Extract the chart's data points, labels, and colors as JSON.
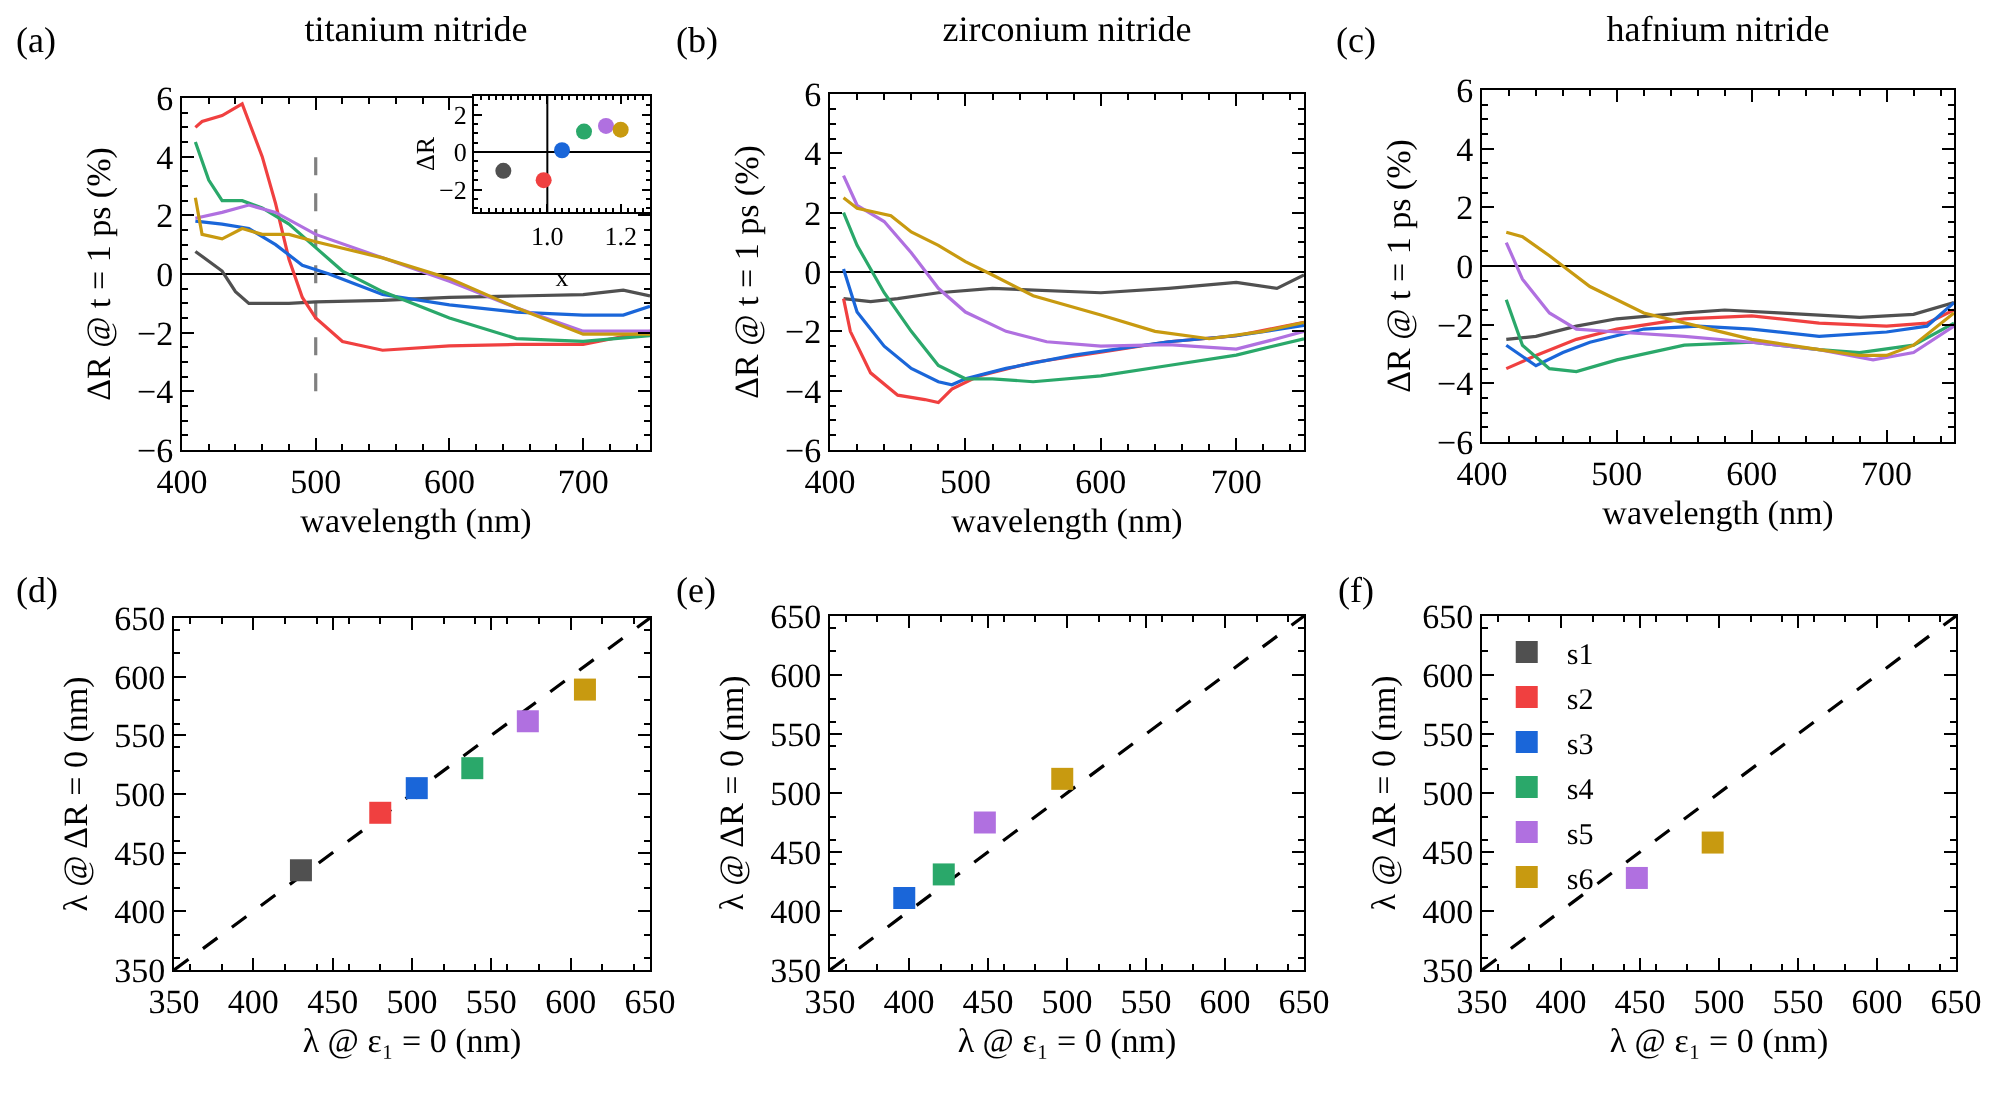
{
  "chart_data": [
    {
      "type": "line",
      "title": "titanium nitride",
      "annotations": [
        "(a)"
      ],
      "xlabel": "wavelength (nm)",
      "ylabel": "ΔR @ t = 1 ps (%)",
      "xlim": [
        400,
        750
      ],
      "xticks": [
        400,
        500,
        600,
        700
      ],
      "ylim": [
        -6,
        6
      ],
      "yticks": [
        -6,
        -4,
        -2,
        0,
        2,
        4,
        6
      ],
      "grid": false,
      "legend": false,
      "ref_lines": [
        {
          "axis": "y",
          "value": 0,
          "color": "#000000",
          "line_style": "solid"
        }
      ],
      "series": [
        {
          "color": "#808080",
          "line_style": "dashed",
          "x": [
            500,
            500
          ],
          "values": [
            -4,
            4
          ]
        },
        {
          "color": "#505050",
          "x": [
            410,
            430,
            440,
            450,
            480,
            500,
            550,
            600,
            650,
            700,
            730,
            750
          ],
          "values": [
            0.77,
            0.1,
            -0.6,
            -1.0,
            -1.0,
            -0.95,
            -0.9,
            -0.8,
            -0.75,
            -0.7,
            -0.55,
            -0.75
          ]
        },
        {
          "color": "#f04040",
          "x": [
            410,
            415,
            430,
            445,
            450,
            460,
            470,
            480,
            490,
            500,
            520,
            550,
            600,
            650,
            700,
            750
          ],
          "values": [
            5.0,
            5.2,
            5.4,
            5.8,
            5.2,
            4.0,
            2.4,
            0.5,
            -0.8,
            -1.5,
            -2.3,
            -2.6,
            -2.45,
            -2.4,
            -2.4,
            -1.95
          ]
        },
        {
          "color": "#1a66d9",
          "x": [
            410,
            430,
            450,
            470,
            490,
            510,
            530,
            550,
            600,
            650,
            700,
            730,
            750
          ],
          "values": [
            1.8,
            1.7,
            1.55,
            1.0,
            0.3,
            0,
            -0.35,
            -0.7,
            -1.05,
            -1.3,
            -1.4,
            -1.4,
            -1.1
          ]
        },
        {
          "color": "#2aa86a",
          "x": [
            410,
            420,
            430,
            445,
            460,
            480,
            500,
            520,
            550,
            600,
            650,
            700,
            750
          ],
          "values": [
            4.5,
            3.2,
            2.5,
            2.5,
            2.25,
            1.7,
            0.9,
            0.1,
            -0.6,
            -1.5,
            -2.2,
            -2.3,
            -2.1
          ]
        },
        {
          "color": "#b070e0",
          "x": [
            410,
            430,
            450,
            470,
            500,
            550,
            600,
            650,
            700,
            730,
            750
          ],
          "values": [
            1.9,
            2.1,
            2.35,
            2.1,
            1.35,
            0.55,
            -0.25,
            -1.15,
            -1.95,
            -1.95,
            -1.95
          ]
        },
        {
          "color": "#c89a10",
          "x": [
            410,
            415,
            430,
            445,
            460,
            480,
            500,
            550,
            600,
            650,
            700,
            750
          ],
          "values": [
            2.6,
            1.35,
            1.2,
            1.55,
            1.35,
            1.35,
            1.1,
            0.55,
            -0.15,
            -1.15,
            -2.05,
            -2.05
          ]
        }
      ]
    },
    {
      "type": "scatter",
      "marker": "circle",
      "xlabel": "x",
      "ylabel": "ΔR",
      "xlim": [
        0.8,
        1.28
      ],
      "xticks": [
        {
          "value": 1,
          "label": "1.0"
        },
        {
          "value": 1.2,
          "label": "1.2"
        }
      ],
      "ylim": [
        -3.2,
        3
      ],
      "yticks": [
        -2,
        0,
        2
      ],
      "grid": false,
      "legend": false,
      "ref_lines": [
        {
          "axis": "y",
          "value": 0,
          "color": "#000000",
          "line_style": "solid"
        },
        {
          "axis": "x",
          "value": 1,
          "color": "#000000",
          "line_style": "solid"
        }
      ],
      "x": [
        0.88,
        0.99,
        1.04,
        1.1,
        1.16,
        1.2
      ],
      "values": [
        -1.0,
        -1.5,
        0.1,
        1.1,
        1.4,
        1.2
      ],
      "colors": [
        "#505050",
        "#f04040",
        "#1a66d9",
        "#2aa86a",
        "#b070e0",
        "#c89a10"
      ]
    },
    {
      "type": "line",
      "title": "zirconium nitride",
      "annotations": [
        "(b)"
      ],
      "xlabel": "wavelength (nm)",
      "ylabel": "ΔR @ t = 1 ps (%)",
      "xlim": [
        400,
        750
      ],
      "xticks": [
        400,
        500,
        600,
        700
      ],
      "ylim": [
        -6,
        6
      ],
      "yticks": [
        -6,
        -4,
        -2,
        0,
        2,
        4,
        6
      ],
      "grid": false,
      "legend": false,
      "ref_lines": [
        {
          "axis": "y",
          "value": 0,
          "color": "#000000",
          "line_style": "solid"
        }
      ],
      "series": [
        {
          "color": "#505050",
          "x": [
            410,
            430,
            450,
            480,
            520,
            600,
            650,
            700,
            730,
            750
          ],
          "values": [
            -0.9,
            -1.0,
            -0.9,
            -0.7,
            -0.55,
            -0.7,
            -0.55,
            -0.35,
            -0.55,
            -0.1
          ]
        },
        {
          "color": "#f04040",
          "x": [
            410,
            415,
            430,
            450,
            470,
            480,
            490,
            510,
            550,
            600,
            650,
            700,
            750
          ],
          "values": [
            -0.9,
            -2.0,
            -3.4,
            -4.15,
            -4.3,
            -4.4,
            -3.95,
            -3.5,
            -3.05,
            -2.7,
            -2.35,
            -2.15,
            -1.7
          ]
        },
        {
          "color": "#1a66d9",
          "x": [
            410,
            420,
            440,
            460,
            480,
            490,
            500,
            530,
            580,
            650,
            700,
            750
          ],
          "values": [
            0.1,
            -1.35,
            -2.5,
            -3.25,
            -3.7,
            -3.8,
            -3.6,
            -3.25,
            -2.8,
            -2.35,
            -2.15,
            -1.8
          ]
        },
        {
          "color": "#2aa86a",
          "x": [
            410,
            420,
            440,
            460,
            480,
            500,
            520,
            550,
            600,
            650,
            700,
            750
          ],
          "values": [
            2.0,
            0.9,
            -0.7,
            -2.0,
            -3.15,
            -3.6,
            -3.6,
            -3.7,
            -3.5,
            -3.15,
            -2.8,
            -2.25
          ]
        },
        {
          "color": "#b070e0",
          "x": [
            410,
            420,
            440,
            460,
            480,
            500,
            530,
            560,
            600,
            650,
            700,
            730,
            750
          ],
          "values": [
            3.25,
            2.25,
            1.7,
            0.65,
            -0.55,
            -1.35,
            -2.0,
            -2.35,
            -2.5,
            -2.45,
            -2.6,
            -2.25,
            -2.0
          ]
        },
        {
          "color": "#c89a10",
          "x": [
            410,
            420,
            445,
            460,
            480,
            500,
            520,
            550,
            600,
            640,
            680,
            720,
            750
          ],
          "values": [
            2.5,
            2.15,
            1.9,
            1.35,
            0.9,
            0.35,
            -0.1,
            -0.8,
            -1.45,
            -2.0,
            -2.25,
            -2.0,
            -1.7
          ]
        }
      ]
    },
    {
      "type": "line",
      "title": "hafnium nitride",
      "annotations": [
        "(c)"
      ],
      "xlabel": "wavelength (nm)",
      "ylabel": "ΔR @ t = 1 ps (%)",
      "xlim": [
        400,
        750
      ],
      "xticks": [
        400,
        500,
        600,
        700
      ],
      "ylim": [
        -6,
        6
      ],
      "yticks": [
        -6,
        -4,
        -2,
        0,
        2,
        4,
        6
      ],
      "grid": false,
      "legend": false,
      "ref_lines": [
        {
          "axis": "y",
          "value": 0,
          "color": "#000000",
          "line_style": "solid"
        }
      ],
      "series": [
        {
          "color": "#505050",
          "x": [
            418,
            440,
            470,
            500,
            550,
            580,
            620,
            680,
            720,
            750
          ],
          "values": [
            -2.5,
            -2.4,
            -2.05,
            -1.8,
            -1.6,
            -1.5,
            -1.6,
            -1.75,
            -1.65,
            -1.25
          ]
        },
        {
          "color": "#f04040",
          "x": [
            418,
            440,
            470,
            500,
            550,
            600,
            650,
            700,
            730,
            750
          ],
          "values": [
            -3.5,
            -3.05,
            -2.5,
            -2.15,
            -1.8,
            -1.7,
            -1.95,
            -2.05,
            -1.95,
            -1.5
          ]
        },
        {
          "color": "#1a66d9",
          "x": [
            418,
            440,
            460,
            480,
            520,
            560,
            600,
            650,
            700,
            730,
            750
          ],
          "values": [
            -2.7,
            -3.4,
            -2.95,
            -2.6,
            -2.15,
            -2.05,
            -2.15,
            -2.4,
            -2.25,
            -2.05,
            -1.25
          ]
        },
        {
          "color": "#2aa86a",
          "x": [
            418,
            430,
            450,
            470,
            500,
            550,
            600,
            650,
            680,
            720,
            750
          ],
          "values": [
            -1.15,
            -2.7,
            -3.5,
            -3.6,
            -3.2,
            -2.7,
            -2.6,
            -2.85,
            -2.95,
            -2.7,
            -1.95
          ]
        },
        {
          "color": "#b070e0",
          "x": [
            418,
            430,
            450,
            470,
            500,
            550,
            600,
            650,
            690,
            720,
            750
          ],
          "values": [
            0.8,
            -0.45,
            -1.6,
            -2.15,
            -2.25,
            -2.4,
            -2.6,
            -2.85,
            -3.2,
            -2.95,
            -2.05
          ]
        },
        {
          "color": "#c89a10",
          "x": [
            418,
            430,
            450,
            480,
            520,
            560,
            600,
            650,
            680,
            700,
            720,
            750
          ],
          "values": [
            1.15,
            1.0,
            0.35,
            -0.7,
            -1.6,
            -2.05,
            -2.5,
            -2.85,
            -3.05,
            -3.05,
            -2.7,
            -1.6
          ]
        }
      ]
    },
    {
      "type": "scatter",
      "marker": "square",
      "annotations": [
        "(d)"
      ],
      "xlabel": "λ @ ε₁ = 0 (nm)",
      "ylabel": "λ @ ΔR = 0 (nm)",
      "xlim": [
        350,
        650
      ],
      "xticks": [
        350,
        400,
        450,
        500,
        550,
        600,
        650
      ],
      "ylim": [
        350,
        650
      ],
      "yticks": [
        350,
        400,
        450,
        500,
        550,
        600,
        650
      ],
      "grid": false,
      "legend": false,
      "series": [
        {
          "type": "line",
          "marker": "none",
          "color": "#000000",
          "line_style": "dashed",
          "x": [
            350,
            650
          ],
          "values": [
            350,
            650
          ]
        },
        {
          "color": "#505050",
          "x": [
            430
          ],
          "values": [
            435
          ]
        },
        {
          "color": "#f04040",
          "x": [
            480
          ],
          "values": [
            484
          ]
        },
        {
          "color": "#1a66d9",
          "x": [
            503
          ],
          "values": [
            505
          ]
        },
        {
          "color": "#2aa86a",
          "x": [
            538
          ],
          "values": [
            522
          ]
        },
        {
          "color": "#b070e0",
          "x": [
            573
          ],
          "values": [
            562
          ]
        },
        {
          "color": "#c89a10",
          "x": [
            609
          ],
          "values": [
            589
          ]
        }
      ]
    },
    {
      "type": "scatter",
      "marker": "square",
      "annotations": [
        "(e)"
      ],
      "xlabel": "λ @ ε₁ = 0 (nm)",
      "ylabel": "λ @ ΔR = 0 (nm)",
      "xlim": [
        350,
        650
      ],
      "xticks": [
        350,
        400,
        450,
        500,
        550,
        600,
        650
      ],
      "ylim": [
        350,
        650
      ],
      "yticks": [
        350,
        400,
        450,
        500,
        550,
        600,
        650
      ],
      "grid": false,
      "legend": false,
      "series": [
        {
          "type": "line",
          "marker": "none",
          "color": "#000000",
          "line_style": "dashed",
          "x": [
            350,
            650
          ],
          "values": [
            350,
            650
          ]
        },
        {
          "color": "#1a66d9",
          "x": [
            397
          ],
          "values": [
            411
          ]
        },
        {
          "color": "#2aa86a",
          "x": [
            422
          ],
          "values": [
            431
          ]
        },
        {
          "color": "#b070e0",
          "x": [
            448
          ],
          "values": [
            475
          ]
        },
        {
          "color": "#c89a10",
          "x": [
            497
          ],
          "values": [
            512
          ]
        }
      ]
    },
    {
      "type": "scatter",
      "marker": "square",
      "annotations": [
        "(f)"
      ],
      "xlabel": "λ @ ε₁ = 0 (nm)",
      "ylabel": "λ @ ΔR = 0 (nm)",
      "xlim": [
        350,
        650
      ],
      "xticks": [
        350,
        400,
        450,
        500,
        550,
        600,
        650
      ],
      "ylim": [
        350,
        650
      ],
      "yticks": [
        350,
        400,
        450,
        500,
        550,
        600,
        650
      ],
      "grid": false,
      "legend": "top left",
      "series": [
        {
          "type": "line",
          "marker": "none",
          "color": "#000000",
          "line_style": "dashed",
          "x": [
            350,
            650
          ],
          "values": [
            350,
            650
          ]
        },
        {
          "name": "s1",
          "color": "#505050",
          "x": [
            null
          ],
          "values": [
            null
          ]
        },
        {
          "name": "s2",
          "color": "#f04040",
          "x": [
            null
          ],
          "values": [
            null
          ]
        },
        {
          "name": "s3",
          "color": "#1a66d9",
          "x": [
            null
          ],
          "values": [
            null
          ]
        },
        {
          "name": "s4",
          "color": "#2aa86a",
          "x": [
            null
          ],
          "values": [
            null
          ]
        },
        {
          "name": "s5",
          "color": "#b070e0",
          "x": [
            448
          ],
          "values": [
            428
          ]
        },
        {
          "name": "s6",
          "color": "#c89a10",
          "x": [
            496
          ],
          "values": [
            458
          ]
        }
      ]
    }
  ]
}
